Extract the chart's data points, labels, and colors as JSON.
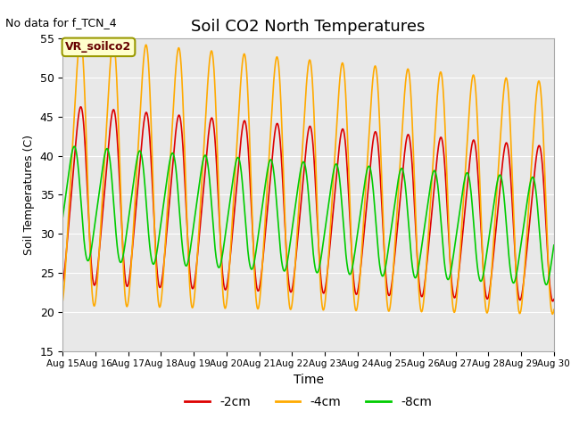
{
  "title": "Soil CO2 North Temperatures",
  "no_data_text": "No data for f_TCN_4",
  "xlabel": "Time",
  "ylabel": "Soil Temperatures (C)",
  "ylim": [
    15,
    55
  ],
  "bg_color": "#e8e8e8",
  "legend_label": "VR_soilco2",
  "series_colors": {
    "2cm": "#dd0000",
    "4cm": "#ffaa00",
    "8cm": "#00cc00"
  },
  "series_labels": [
    "-2cm",
    "-4cm",
    "-8cm"
  ],
  "x_tick_labels": [
    "Aug 15",
    "Aug 16",
    "Aug 17",
    "Aug 18",
    "Aug 19",
    "Aug 20",
    "Aug 21",
    "Aug 22",
    "Aug 23",
    "Aug 24",
    "Aug 25",
    "Aug 26",
    "Aug 27",
    "Aug 28",
    "Aug 29",
    "Aug 30"
  ]
}
